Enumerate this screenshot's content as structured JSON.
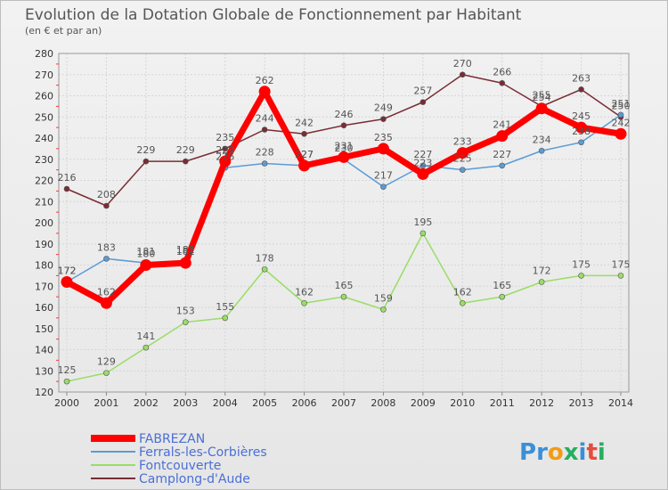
{
  "chart_data": {
    "type": "line",
    "title": "Evolution de la Dotation Globale de Fonctionnement par Habitant",
    "subtitle": "(en € et par an)",
    "x": [
      "2000",
      "2001",
      "2002",
      "2003",
      "2004",
      "2005",
      "2006",
      "2007",
      "2008",
      "2009",
      "2010",
      "2011",
      "2012",
      "2013",
      "2014"
    ],
    "ylim": [
      120,
      280
    ],
    "yticks": [
      120,
      130,
      140,
      150,
      160,
      170,
      180,
      190,
      200,
      210,
      220,
      230,
      240,
      250,
      260,
      270,
      280
    ],
    "grid": true,
    "legend_position": "bottom-left",
    "series": [
      {
        "name": "FABREZAN",
        "color": "#ff0000",
        "values": [
          172,
          162,
          180,
          181,
          229,
          262,
          227,
          231,
          235,
          223,
          233,
          241,
          254,
          245,
          242
        ]
      },
      {
        "name": "Ferrals-les-Corbières",
        "color": "#5b9bd5",
        "values": [
          172,
          183,
          181,
          182,
          226,
          228,
          227,
          230,
          217,
          227,
          225,
          227,
          234,
          238,
          251
        ]
      },
      {
        "name": "Fontcouverte",
        "color": "#99dd66",
        "values": [
          125,
          129,
          141,
          153,
          155,
          178,
          162,
          165,
          159,
          195,
          162,
          165,
          172,
          175,
          175
        ]
      },
      {
        "name": "Camplong-d'Aude",
        "color": "#7a2c35",
        "values": [
          216,
          208,
          229,
          229,
          235,
          244,
          242,
          246,
          249,
          257,
          270,
          266,
          255,
          263,
          250
        ]
      }
    ]
  },
  "brand": {
    "text": "Proxiti",
    "letters": [
      "P",
      "r",
      "o",
      "x",
      "i",
      "t",
      "i"
    ],
    "colors": [
      "#3a8fd8",
      "#3a8fd8",
      "#f39c12",
      "#27ae60",
      "#3a8fd8",
      "#e74c3c",
      "#27ae60"
    ]
  }
}
